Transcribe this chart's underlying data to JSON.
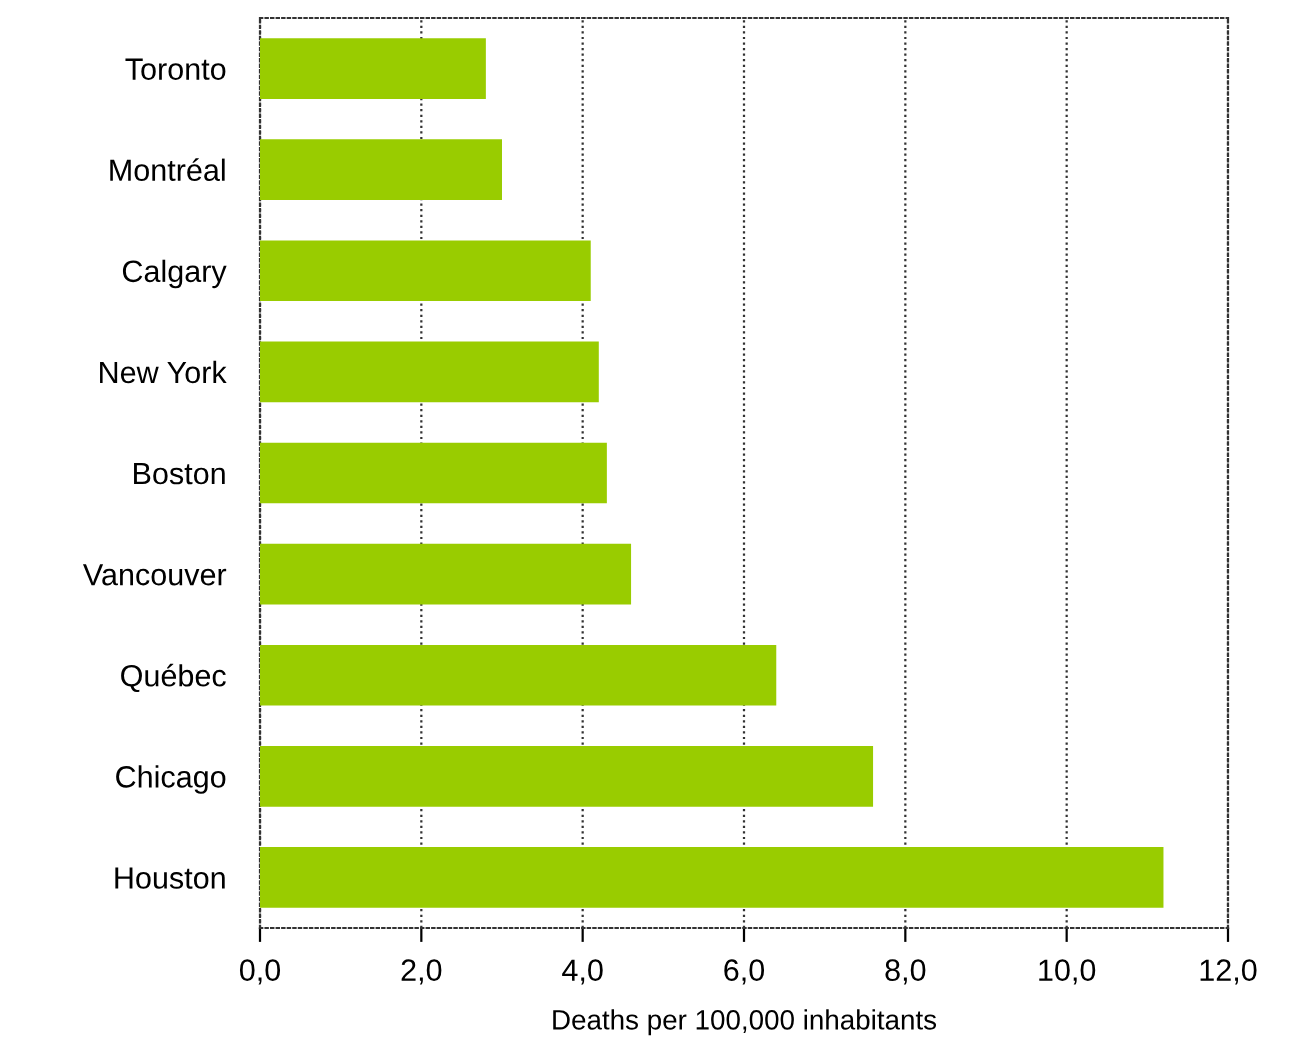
{
  "chart_data": {
    "type": "bar",
    "orientation": "horizontal",
    "categories": [
      "Toronto",
      "Montréal",
      "Calgary",
      "New York",
      "Boston",
      "Vancouver",
      "Québec",
      "Chicago",
      "Houston"
    ],
    "values": [
      2.8,
      3.0,
      4.1,
      4.2,
      4.3,
      4.6,
      6.4,
      7.6,
      11.2
    ],
    "color": "#99cc00",
    "xlim": [
      0,
      12
    ],
    "xticks": [
      {
        "value": 0,
        "label": "0,0"
      },
      {
        "value": 2,
        "label": "2,0"
      },
      {
        "value": 4,
        "label": "4,0"
      },
      {
        "value": 6,
        "label": "6,0"
      },
      {
        "value": 8,
        "label": "8,0"
      },
      {
        "value": 10,
        "label": "10,0"
      },
      {
        "value": 12,
        "label": "12,0"
      }
    ],
    "xlabel": "Deaths per 100,000 inhabitants",
    "grid": "x"
  }
}
